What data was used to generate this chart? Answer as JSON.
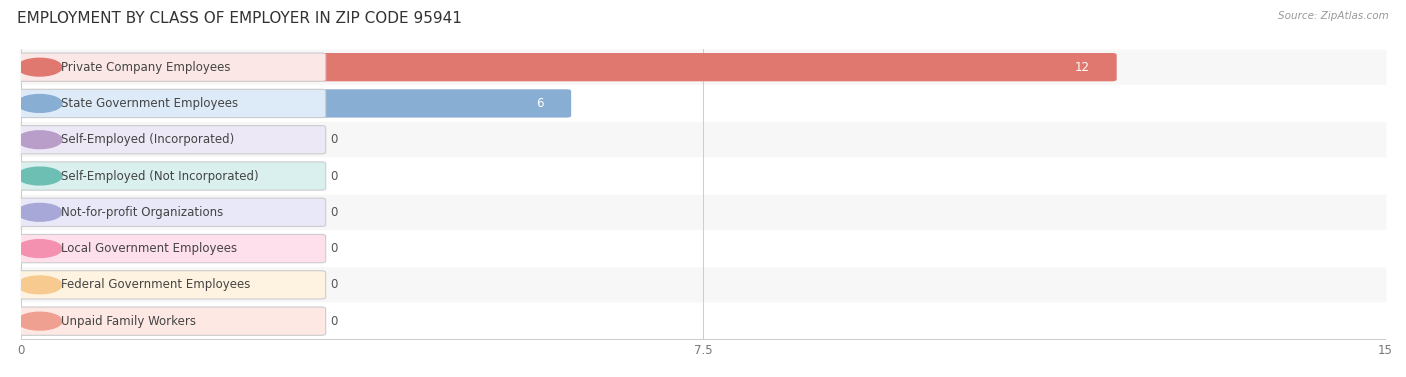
{
  "title": "EMPLOYMENT BY CLASS OF EMPLOYER IN ZIP CODE 95941",
  "source": "Source: ZipAtlas.com",
  "categories": [
    "Private Company Employees",
    "State Government Employees",
    "Self-Employed (Incorporated)",
    "Self-Employed (Not Incorporated)",
    "Not-for-profit Organizations",
    "Local Government Employees",
    "Federal Government Employees",
    "Unpaid Family Workers"
  ],
  "values": [
    12,
    6,
    0,
    0,
    0,
    0,
    0,
    0
  ],
  "bar_colors": [
    "#e07870",
    "#89aed4",
    "#b89ec8",
    "#6dbfb4",
    "#a8a8d8",
    "#f490b0",
    "#f7ca90",
    "#f0a090"
  ],
  "label_bg_colors": [
    "#fbe8e6",
    "#ddeaf7",
    "#ede8f5",
    "#d9f0ee",
    "#e8e8f8",
    "#fde0eb",
    "#fef3e0",
    "#fde8e4"
  ],
  "row_bg_light": "#f7f7f7",
  "row_bg_dark": "#ffffff",
  "xlim": [
    0,
    15
  ],
  "xticks": [
    0,
    7.5,
    15
  ],
  "title_fontsize": 11,
  "label_fontsize": 8.5,
  "value_fontsize": 8.5,
  "background_color": "#ffffff"
}
